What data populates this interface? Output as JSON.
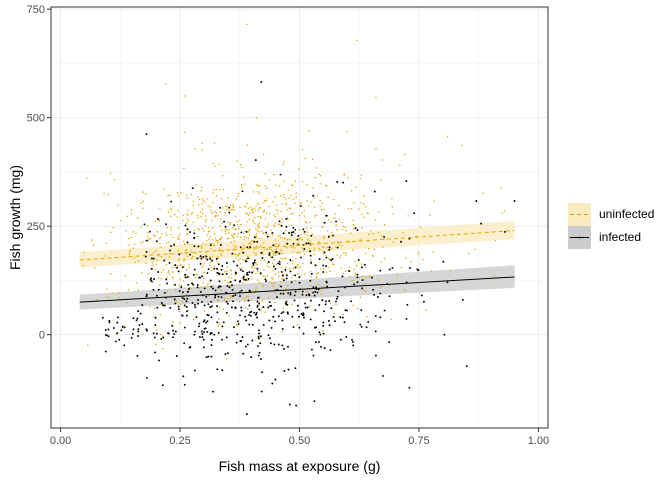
{
  "chart_data": {
    "type": "scatter",
    "title": "",
    "xlabel": "Fish mass at exposure (g)",
    "ylabel": "Fish growth (mg)",
    "xlim": [
      -0.02,
      1.02
    ],
    "ylim": [
      -215,
      755
    ],
    "x_ticks": [
      0.0,
      0.25,
      0.5,
      0.75,
      1.0
    ],
    "x_tick_labels": [
      "0.00",
      "0.25",
      "0.50",
      "0.75",
      "1.00"
    ],
    "y_ticks": [
      0,
      250,
      500,
      750
    ],
    "y_tick_labels": [
      "0",
      "250",
      "500",
      "750"
    ],
    "grid": true,
    "legend_position": "right",
    "series": [
      {
        "name": "uninfected",
        "color": "#E6A800",
        "band_color": "#FBEBC1",
        "line_style": "dashed",
        "n_points": 1050,
        "x_range": [
          0.04,
          0.95
        ],
        "fit": {
          "x": [
            0.04,
            0.95
          ],
          "y": [
            172,
            240
          ]
        },
        "ci": {
          "lower": [
            155,
            220
          ],
          "upper": [
            190,
            262
          ]
        },
        "points": [
          [
            0.39,
            715
          ],
          [
            0.62,
            678
          ],
          [
            0.22,
            578
          ],
          [
            0.66,
            546
          ],
          [
            0.26,
            550
          ],
          [
            0.41,
            500
          ],
          [
            0.52,
            470
          ],
          [
            0.6,
            468
          ],
          [
            0.26,
            466
          ],
          [
            0.81,
            456
          ],
          [
            0.84,
            436
          ],
          [
            0.66,
            428
          ],
          [
            0.72,
            415
          ],
          [
            0.71,
            390
          ],
          [
            0.37,
            400
          ]
        ]
      },
      {
        "name": "infected",
        "color": "#000000",
        "band_color": "#CCCCCC",
        "line_style": "solid",
        "n_points": 620,
        "x_range": [
          0.08,
          0.95
        ],
        "fit": {
          "x": [
            0.04,
            0.95
          ],
          "y": [
            75,
            133
          ]
        },
        "ci": {
          "lower": [
            58,
            108
          ],
          "upper": [
            92,
            160
          ]
        },
        "points": [
          [
            0.42,
            582
          ],
          [
            0.18,
            462
          ],
          [
            0.39,
            -183
          ],
          [
            0.73,
            -122
          ],
          [
            0.66,
            -48
          ],
          [
            0.85,
            -72
          ],
          [
            0.87,
            308
          ],
          [
            0.95,
            308
          ],
          [
            0.93,
            237
          ],
          [
            0.88,
            256
          ],
          [
            0.74,
            280
          ],
          [
            0.28,
            0
          ],
          [
            0.13,
            18
          ],
          [
            0.12,
            40
          ],
          [
            0.1,
            12
          ]
        ]
      }
    ]
  }
}
